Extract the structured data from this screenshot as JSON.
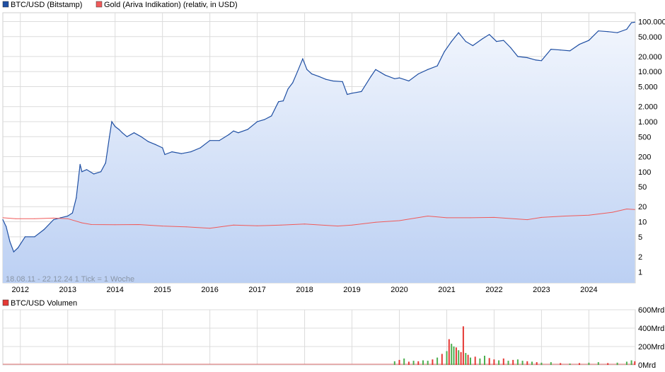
{
  "legend": {
    "btc_label": "BTC/USD (Bitstamp)",
    "gold_label": "Gold (Ariva Indikation) (relativ, in USD)",
    "volume_label": "BTC/USD Volumen"
  },
  "info_text": "18.08.11 - 22.12.24    1 Tick = 1 Woche",
  "colors": {
    "btc_line": "#1f4fa3",
    "btc_fill_top": "#f2f6fd",
    "btc_fill_bottom": "#bcd0f3",
    "gold_line": "#f05a5a",
    "vol_up": "#4caf50",
    "vol_down": "#e53935",
    "grid": "#dcdcdc"
  },
  "chart_data": [
    {
      "type": "area",
      "scale": "log",
      "x_tick_labels": [
        "2012",
        "2013",
        "2014",
        "2015",
        "2016",
        "2017",
        "2018",
        "2019",
        "2020",
        "2021",
        "2022",
        "2023",
        "2024"
      ],
      "y_tick_labels": [
        "100.000",
        "50.000",
        "20.000",
        "10.000",
        "5.000",
        "2.000",
        "1.000",
        "500",
        "200",
        "100",
        "50",
        "20",
        "10",
        "5",
        "2",
        "1"
      ],
      "y_tick_values": [
        100000,
        50000,
        20000,
        10000,
        5000,
        2000,
        1000,
        500,
        200,
        100,
        50,
        20,
        10,
        5,
        2,
        1
      ],
      "ylim": [
        0.6,
        150000
      ],
      "xlim": [
        2011.63,
        2024.98
      ],
      "grid": true,
      "legend_position": "top-left",
      "series": [
        {
          "name": "BTC/USD (Bitstamp)",
          "x": [
            2011.63,
            2011.7,
            2011.78,
            2011.86,
            2011.95,
            2012.1,
            2012.3,
            2012.5,
            2012.7,
            2012.85,
            2013.0,
            2013.1,
            2013.18,
            2013.26,
            2013.3,
            2013.4,
            2013.55,
            2013.7,
            2013.8,
            2013.88,
            2013.93,
            2014.0,
            2014.08,
            2014.15,
            2014.25,
            2014.4,
            2014.55,
            2014.7,
            2014.85,
            2015.0,
            2015.05,
            2015.2,
            2015.4,
            2015.6,
            2015.8,
            2016.0,
            2016.2,
            2016.4,
            2016.5,
            2016.6,
            2016.8,
            2017.0,
            2017.15,
            2017.3,
            2017.45,
            2017.55,
            2017.65,
            2017.75,
            2017.85,
            2017.96,
            2018.05,
            2018.15,
            2018.3,
            2018.45,
            2018.6,
            2018.8,
            2018.9,
            2019.0,
            2019.2,
            2019.4,
            2019.5,
            2019.7,
            2019.9,
            2020.0,
            2020.2,
            2020.4,
            2020.6,
            2020.8,
            2020.95,
            2021.1,
            2021.25,
            2021.4,
            2021.55,
            2021.75,
            2021.9,
            2022.05,
            2022.2,
            2022.35,
            2022.5,
            2022.7,
            2022.88,
            2023.0,
            2023.2,
            2023.4,
            2023.6,
            2023.8,
            2024.0,
            2024.2,
            2024.4,
            2024.6,
            2024.8,
            2024.9,
            2024.97
          ],
          "values": [
            11,
            8,
            4,
            2.5,
            3,
            5,
            5,
            7,
            11,
            12,
            13,
            15,
            30,
            140,
            100,
            110,
            90,
            100,
            150,
            500,
            1000,
            800,
            700,
            600,
            500,
            600,
            500,
            400,
            350,
            300,
            220,
            250,
            230,
            250,
            300,
            420,
            420,
            550,
            650,
            600,
            700,
            1000,
            1100,
            1300,
            2500,
            2600,
            4500,
            6000,
            10000,
            18000,
            11000,
            9000,
            8000,
            7000,
            6500,
            6300,
            3500,
            3700,
            4000,
            8000,
            11000,
            8500,
            7200,
            7500,
            6500,
            9000,
            11000,
            13000,
            25000,
            40000,
            60000,
            40000,
            33000,
            45000,
            55000,
            40000,
            42000,
            30000,
            20000,
            19000,
            17000,
            16500,
            28000,
            27000,
            26000,
            35000,
            42000,
            65000,
            63000,
            60000,
            70000,
            95000,
            97000
          ]
        },
        {
          "name": "Gold (Ariva Indikation) (relativ, in USD)",
          "x": [
            2011.63,
            2011.9,
            2012.3,
            2012.7,
            2013.0,
            2013.3,
            2013.5,
            2014.0,
            2014.5,
            2015.0,
            2015.5,
            2016.0,
            2016.5,
            2017.0,
            2017.5,
            2018.0,
            2018.7,
            2019.0,
            2019.5,
            2020.0,
            2020.6,
            2021.0,
            2021.5,
            2022.0,
            2022.7,
            2023.0,
            2023.5,
            2024.0,
            2024.5,
            2024.8,
            2024.97
          ],
          "values": [
            12,
            11.5,
            11.5,
            11.8,
            11.5,
            9.5,
            8.8,
            8.7,
            8.8,
            8.2,
            7.9,
            7.4,
            8.6,
            8.3,
            8.6,
            9.0,
            8.2,
            8.6,
            9.8,
            10.5,
            13.0,
            12.0,
            12.0,
            12.2,
            11.0,
            12.2,
            13.0,
            13.5,
            15.5,
            18.0,
            17.5
          ]
        }
      ]
    },
    {
      "type": "bar",
      "title": "BTC/USD Volumen",
      "y_tick_labels": [
        "600Mrd",
        "400Mrd",
        "200Mrd",
        "0Mrd"
      ],
      "y_tick_values": [
        600,
        400,
        200,
        0
      ],
      "ylim": [
        0,
        600
      ],
      "unit": "Mrd",
      "x": [
        2019.9,
        2020.0,
        2020.1,
        2020.2,
        2020.3,
        2020.4,
        2020.5,
        2020.6,
        2020.7,
        2020.8,
        2020.9,
        2021.0,
        2021.05,
        2021.1,
        2021.15,
        2021.2,
        2021.25,
        2021.3,
        2021.35,
        2021.4,
        2021.45,
        2021.5,
        2021.6,
        2021.7,
        2021.8,
        2021.9,
        2022.0,
        2022.1,
        2022.2,
        2022.3,
        2022.4,
        2022.5,
        2022.6,
        2022.7,
        2022.8,
        2022.9,
        2023.0,
        2023.2,
        2023.4,
        2023.6,
        2023.8,
        2024.0,
        2024.2,
        2024.4,
        2024.6,
        2024.8,
        2024.9,
        2024.97
      ],
      "values": [
        40,
        55,
        70,
        35,
        45,
        40,
        50,
        45,
        60,
        80,
        120,
        150,
        280,
        230,
        200,
        190,
        160,
        140,
        420,
        130,
        110,
        80,
        90,
        70,
        100,
        75,
        60,
        50,
        70,
        45,
        55,
        60,
        45,
        40,
        35,
        30,
        25,
        30,
        20,
        15,
        20,
        25,
        30,
        20,
        25,
        35,
        50,
        40
      ],
      "up": [
        true,
        false,
        true,
        false,
        true,
        false,
        true,
        true,
        false,
        true,
        false,
        true,
        false,
        true,
        true,
        false,
        true,
        false,
        false,
        true,
        false,
        true,
        false,
        true,
        true,
        false,
        false,
        true,
        false,
        true,
        false,
        true,
        true,
        false,
        true,
        false,
        true,
        true,
        false,
        true,
        false,
        true,
        true,
        false,
        true,
        true,
        true,
        false
      ]
    }
  ]
}
